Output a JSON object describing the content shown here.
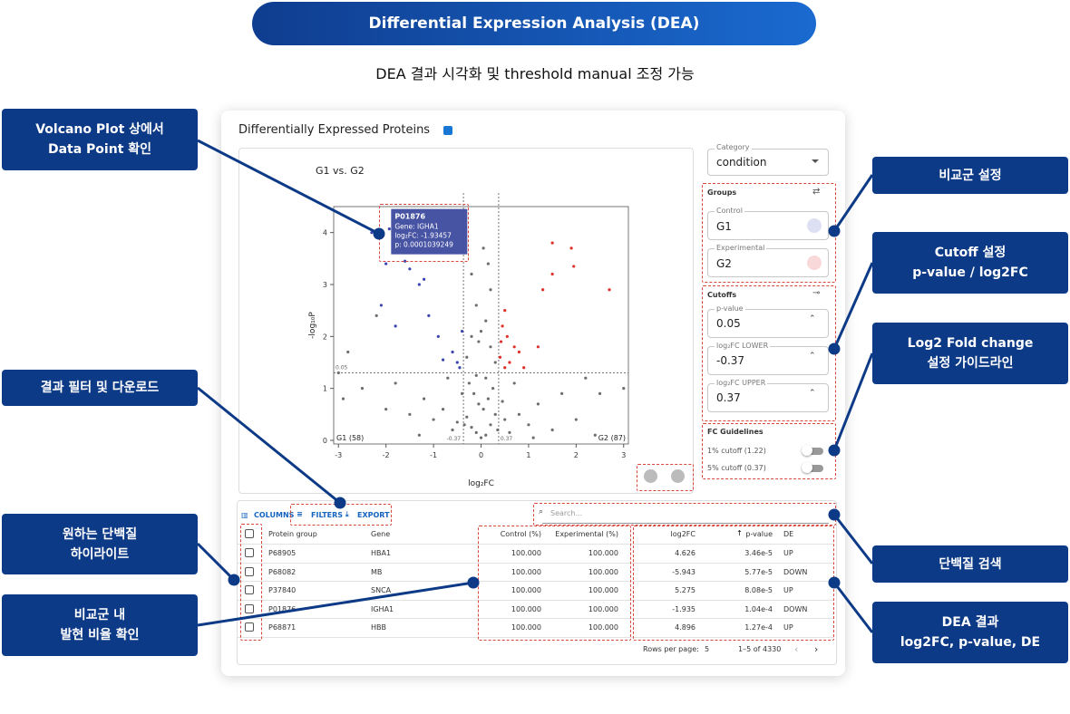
{
  "header": {
    "title": "Differential Expression Analysis (DEA)",
    "subtitle": "DEA 결과 시각화 및 threshold manual 조정 가능"
  },
  "callouts": [
    {
      "lines": [
        "Volcano Plot 상에서",
        "Data Point 확인"
      ]
    },
    {
      "lines": [
        "결과 필터 및 다운로드"
      ]
    },
    {
      "lines": [
        "원하는 단백질",
        "하이라이트"
      ]
    },
    {
      "lines": [
        "비교군 내",
        "발현 비율 확인"
      ]
    },
    {
      "lines": [
        "비교군 설정"
      ]
    },
    {
      "lines": [
        "Cutoff 설정",
        "p-value / log2FC"
      ]
    },
    {
      "lines": [
        "Log2 Fold change",
        "설정 가이드라인"
      ]
    },
    {
      "lines": [
        "단백질 검색"
      ]
    },
    {
      "lines": [
        "DEA 결과",
        "log2FC, p-value, DE"
      ]
    }
  ],
  "panel": {
    "title": "Differentially Expressed Proteins",
    "category": {
      "label": "Category",
      "value": "condition"
    },
    "groups": {
      "title": "Groups",
      "control": {
        "label": "Control",
        "value": "G1"
      },
      "experimental": {
        "label": "Experimental",
        "value": "G2"
      }
    },
    "cutoffs": {
      "title": "Cutoffs",
      "fields": [
        {
          "label": "p-value",
          "value": "0.05"
        },
        {
          "label": "log₂FC LOWER",
          "value": "-0.37"
        },
        {
          "label": "log₂FC UPPER",
          "value": "0.37"
        }
      ]
    },
    "guidelines": {
      "title": "FC Guidelines",
      "items": [
        "1% cutoff (1.22)",
        "5% cutoff (0.37)"
      ]
    },
    "toolbar": [
      "COLUMNS",
      "FILTERS",
      "EXPORT"
    ],
    "search": "Search...",
    "table": {
      "columns": [
        "Protein group",
        "Gene",
        "Control (%)",
        "Experimental (%)",
        "log2FC",
        "p-value",
        "DE"
      ],
      "rows": [
        [
          "P68905",
          "HBA1",
          "100.000",
          "100.000",
          "4.626",
          "3.46e-5",
          "UP"
        ],
        [
          "P68082",
          "MB",
          "100.000",
          "100.000",
          "-5.943",
          "5.77e-5",
          "DOWN"
        ],
        [
          "P37840",
          "SNCA",
          "100.000",
          "100.000",
          "5.275",
          "8.08e-5",
          "UP"
        ],
        [
          "P01876",
          "IGHA1",
          "100.000",
          "100.000",
          "-1.935",
          "1.04e-4",
          "DOWN"
        ],
        [
          "P68871",
          "HBB",
          "100.000",
          "100.000",
          "4.896",
          "1.27e-4",
          "UP"
        ]
      ]
    },
    "pagination": {
      "rows_per_page_label": "Rows per page:",
      "rows_per_page": "5",
      "range": "1–5 of 4330"
    }
  },
  "chart_data": {
    "type": "scatter",
    "title": "G1 vs. G2",
    "xlabel": "log₂FC",
    "ylabel": "-log₁₀P",
    "xlim": [
      -3.1,
      3.1
    ],
    "ylim": [
      -0.07,
      4.5
    ],
    "xticks": [
      -3,
      -2,
      -1,
      0,
      1,
      2,
      3
    ],
    "yticks": [
      0,
      1,
      2,
      3,
      4
    ],
    "x_thresholds": [
      -0.37,
      0.37
    ],
    "y_threshold": {
      "value": 1.3,
      "label": "0.05"
    },
    "annotations": [
      "G1 (58)",
      "G2 (87)"
    ],
    "tooltip": {
      "title": "P01876",
      "lines": [
        "Gene: IGHA1",
        "log₂FC: -1.93457",
        "p: 0.0001039249"
      ],
      "x": -1.93,
      "y": 4.07
    },
    "series": [
      {
        "color": "#6e6e6e",
        "x": [
          0,
          0.1,
          -0.1,
          0.2,
          -0.2,
          0.3,
          -0.3,
          0.05,
          -0.05,
          0.15,
          -0.15,
          0.25,
          -0.25,
          0.35,
          -0.35,
          0.5,
          -0.5,
          0.6,
          -0.6,
          0.8,
          -0.8,
          1.0,
          -1.0,
          1.2,
          -1.2,
          1.5,
          -1.5,
          2.0,
          -2.0,
          2.5,
          -2.5,
          -3,
          3,
          2.2,
          -1.8,
          0.1,
          -0.1,
          0.3,
          -0.3,
          0.2,
          -0.2,
          0.1,
          -0.1,
          0.2,
          -0.2,
          0.15,
          0.0,
          -0.4,
          0.45,
          0.7,
          -0.7,
          1.7,
          -2.8,
          -2.2,
          2.4,
          -2.9,
          1.1,
          -1.3,
          0.05,
          -0.05
        ],
        "y": [
          0.05,
          0.1,
          0.15,
          0.3,
          0.25,
          0.5,
          0.45,
          0.6,
          0.7,
          0.8,
          0.9,
          1.0,
          1.1,
          0.2,
          0.3,
          0.4,
          0.35,
          0.15,
          0.2,
          0.5,
          0.6,
          0.3,
          0.4,
          0.7,
          0.8,
          0.2,
          0.5,
          0.4,
          0.6,
          0.9,
          1.0,
          1.3,
          1.0,
          1.2,
          1.1,
          1.2,
          1.25,
          1.5,
          1.6,
          1.8,
          2.0,
          2.3,
          2.6,
          2.9,
          3.2,
          3.4,
          2.1,
          0.9,
          0.75,
          1.1,
          1.2,
          0.9,
          1.7,
          2.4,
          0.1,
          0.8,
          0.05,
          0.1,
          3.7,
          1.9
        ]
      },
      {
        "color": "#3a45b0",
        "x": [
          -2.3,
          -1.93,
          -1.5,
          -1.2,
          -2.1,
          -1.8,
          -0.9,
          -0.6,
          -0.5,
          -0.45,
          -1.3,
          -2.0,
          -1.6,
          -0.8,
          -0.4,
          -1.1
        ],
        "y": [
          4.0,
          4.07,
          3.3,
          3.1,
          2.6,
          2.2,
          2.0,
          1.7,
          1.5,
          1.4,
          3.0,
          3.4,
          3.45,
          1.55,
          2.1,
          2.4
        ]
      },
      {
        "color": "#e0302a",
        "x": [
          1.5,
          1.9,
          1.5,
          1.95,
          2.7,
          1.3,
          0.5,
          0.45,
          0.55,
          0.7,
          0.4,
          0.6,
          0.8,
          1.2,
          0.5,
          0.9,
          0.42
        ],
        "y": [
          3.8,
          3.7,
          3.2,
          3.35,
          2.9,
          2.9,
          2.5,
          2.2,
          2.0,
          1.8,
          1.6,
          1.5,
          1.7,
          1.8,
          1.4,
          1.4,
          1.9
        ]
      }
    ]
  }
}
